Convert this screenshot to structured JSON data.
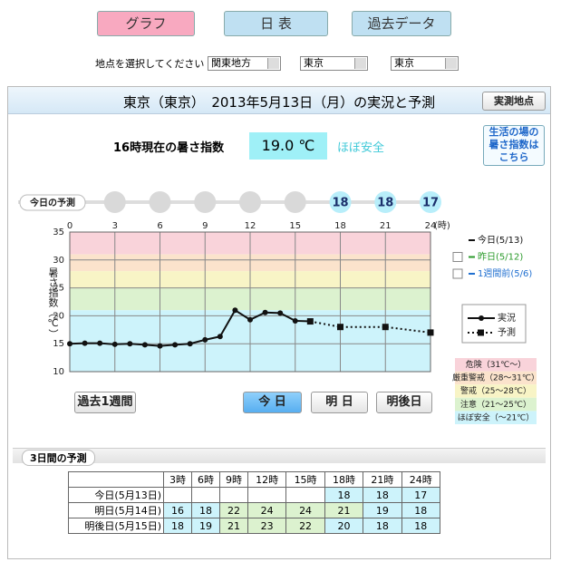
{
  "tabs": [
    "グラフ",
    "日 表",
    "過去データ"
  ],
  "location": {
    "label": "地点を選択してください",
    "selects": [
      "関東地方",
      "東京",
      "東京"
    ]
  },
  "header": {
    "title": "東京（東京）　2013年5月13日（月）の実況と予測",
    "button": "実測地点"
  },
  "current": {
    "label": "16時現在の暑さ指数",
    "value": "19.0 ℃",
    "status": "ほぼ安全",
    "link": [
      "生活の場の",
      "暑さ指数は",
      "こちら"
    ]
  },
  "chart_data": {
    "type": "line",
    "ylabel": "暑さ指数（℃）",
    "xlim": [
      0,
      24
    ],
    "xticks": [
      0,
      3,
      6,
      9,
      12,
      15,
      18,
      21,
      24
    ],
    "x_unit": "(時)",
    "ylim": [
      10,
      35
    ],
    "yticks": [
      10,
      15,
      20,
      25,
      30,
      35
    ],
    "grid": true,
    "forecast_strip": {
      "label": "今日の予測",
      "hours": [
        3,
        6,
        9,
        12,
        15,
        18,
        21,
        24
      ],
      "values": [
        null,
        null,
        null,
        null,
        null,
        18,
        18,
        17
      ]
    },
    "bands": [
      {
        "label": "危険（31℃～）",
        "from": 31,
        "to": 35,
        "color": "#f9d3da"
      },
      {
        "label": "厳重警戒（28～31℃）",
        "from": 28,
        "to": 31,
        "color": "#fbe3cc"
      },
      {
        "label": "警戒（25～28℃）",
        "from": 25,
        "to": 28,
        "color": "#f8f4c6"
      },
      {
        "label": "注意（21～25℃）",
        "from": 21,
        "to": 25,
        "color": "#dcf2cf"
      },
      {
        "label": "ほぼ安全（～21℃）",
        "from": 10,
        "to": 21,
        "color": "#cdf3fb"
      }
    ],
    "series": [
      {
        "name": "実況",
        "color": "#111111",
        "marker": "circle",
        "dashed": false,
        "x": [
          0,
          1,
          2,
          3,
          4,
          5,
          6,
          7,
          8,
          9,
          10,
          11,
          12,
          13,
          14,
          15,
          16
        ],
        "values": [
          15.0,
          15.1,
          15.1,
          14.9,
          15.0,
          14.8,
          14.6,
          14.8,
          15.0,
          15.7,
          16.3,
          21.0,
          19.3,
          20.6,
          20.5,
          19.1,
          19.0
        ]
      },
      {
        "name": "予測",
        "color": "#111111",
        "marker": "square",
        "dashed": true,
        "x": [
          16,
          18,
          21,
          24
        ],
        "values": [
          19.0,
          18,
          18,
          17
        ]
      }
    ],
    "day_legend": [
      {
        "name": "今日(5/13)",
        "color": "#111111",
        "checkbox": false
      },
      {
        "name": "昨日(5/12)",
        "color": "#2a9a2a",
        "checkbox": true
      },
      {
        "name": "1週間前(5/6)",
        "color": "#1f6fd0",
        "checkbox": true
      }
    ]
  },
  "day_buttons": [
    "過去1週間",
    "今 日",
    "明 日",
    "明後日"
  ],
  "table": {
    "title": "3日間の予測",
    "header": [
      "3時",
      "6時",
      "9時",
      "12時",
      "15時",
      "18時",
      "21時",
      "24時"
    ],
    "rows": [
      {
        "label": "今日(5月13日)",
        "values": [
          null,
          null,
          null,
          null,
          null,
          18,
          18,
          17
        ]
      },
      {
        "label": "明日(5月14日)",
        "values": [
          16,
          18,
          22,
          24,
          24,
          21,
          19,
          18
        ]
      },
      {
        "label": "明後日(5月15日)",
        "values": [
          18,
          19,
          21,
          23,
          22,
          20,
          18,
          18
        ]
      }
    ]
  }
}
